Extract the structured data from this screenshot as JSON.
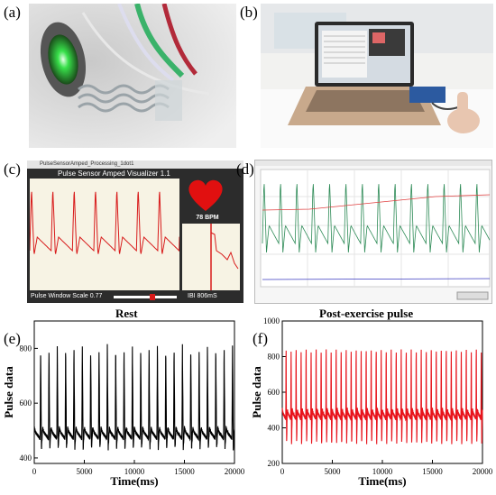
{
  "labels": {
    "a": "(a)",
    "b": "(b)",
    "c": "(c)",
    "d": "(d)",
    "e": "(e)",
    "f": "(f)"
  },
  "visualizer": {
    "window_title": "PulseSensorAmped_Processing_1dot1",
    "app_title": "Pulse Sensor Amped Visualizer 1.1",
    "bpm": "78 BPM",
    "scale": "Pulse Window Scale 0.77",
    "ibi": "IBI 806mS"
  },
  "captions": {
    "rest": "Rest",
    "post": "Post-exercise pulse"
  },
  "colors": {
    "rest_line": "#000000",
    "post_line": "#e8141c",
    "visualizer_wave": "#d81b1b",
    "heart": "#e11010"
  },
  "chart_data": [
    {
      "type": "line",
      "title": "Rest",
      "xlabel": "Time(ms)",
      "ylabel": "Pulse data",
      "xlim": [
        0,
        20000
      ],
      "ylim": [
        380,
        900
      ],
      "xticks": [
        0,
        5000,
        10000,
        15000,
        20000
      ],
      "yticks": [
        400,
        600,
        800
      ],
      "series": [
        {
          "color": "#000000",
          "beats": 24,
          "peak": 810,
          "trough": 430,
          "baseline": 470,
          "duration": 20000
        }
      ]
    },
    {
      "type": "line",
      "title": "Post-exercise pulse",
      "xlabel": "Time(ms)",
      "ylabel": "Pulse data",
      "xlim": [
        0,
        20000
      ],
      "ylim": [
        200,
        1000
      ],
      "xticks": [
        0,
        5000,
        10000,
        15000,
        20000
      ],
      "yticks": [
        200,
        400,
        600,
        800,
        1000
      ],
      "series": [
        {
          "color": "#e8141c",
          "beats": 40,
          "peak": 900,
          "trough": 300,
          "baseline": 450,
          "duration": 20000
        }
      ]
    }
  ]
}
